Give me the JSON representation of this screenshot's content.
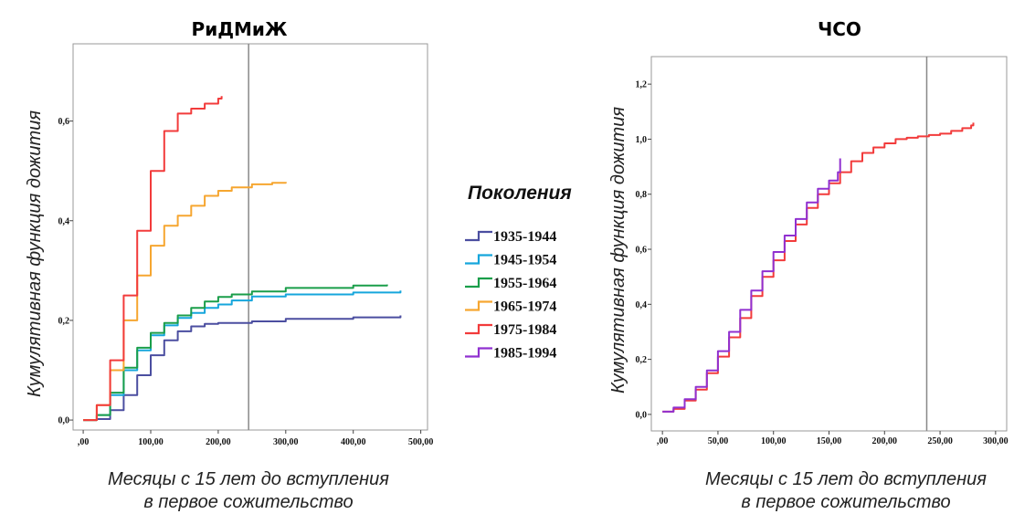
{
  "legend": {
    "title": "Поколения",
    "entries": [
      {
        "label": "1935-1944",
        "color": "#4b4ea0"
      },
      {
        "label": "1945-1954",
        "color": "#16a6dc"
      },
      {
        "label": "1955-1964",
        "color": "#1a9e4a"
      },
      {
        "label": "1965-1974",
        "color": "#f6a630"
      },
      {
        "label": "1975-1984",
        "color": "#f23b3b"
      },
      {
        "label": "1985-1994",
        "color": "#9030d0"
      }
    ]
  },
  "chart_data": [
    {
      "type": "line",
      "title": "РиДМиЖ",
      "xlabel": [
        "Месяцы с 15 лет до вступления",
        "в первое сожительство"
      ],
      "ylabel": "Кумулятивная функция дожития",
      "xlim": [
        -15,
        510
      ],
      "ylim": [
        -0.02,
        0.755
      ],
      "xticks": [
        0,
        100,
        200,
        300,
        400,
        500
      ],
      "xtick_labels": [
        ",00",
        "100,00",
        "200,00",
        "300,00",
        "400,00",
        "500,00"
      ],
      "yticks": [
        0,
        0.2,
        0.4,
        0.6
      ],
      "ytick_labels": [
        "0,0",
        "0,2",
        "0,4",
        "0,6"
      ],
      "reference_line_x": 245,
      "grid": false,
      "legend_position": "right",
      "series": [
        {
          "name": "1935-1944",
          "color": "#4b4ea0",
          "x": [
            0,
            20,
            40,
            60,
            80,
            100,
            120,
            140,
            160,
            180,
            200,
            250,
            300,
            400,
            470
          ],
          "y": [
            0,
            0.002,
            0.02,
            0.05,
            0.09,
            0.13,
            0.16,
            0.178,
            0.188,
            0.193,
            0.195,
            0.198,
            0.203,
            0.206,
            0.21
          ]
        },
        {
          "name": "1945-1954",
          "color": "#16a6dc",
          "x": [
            0,
            20,
            40,
            60,
            80,
            100,
            120,
            140,
            160,
            180,
            200,
            220,
            250,
            300,
            400,
            470
          ],
          "y": [
            0,
            0.01,
            0.05,
            0.1,
            0.14,
            0.17,
            0.19,
            0.205,
            0.215,
            0.225,
            0.232,
            0.24,
            0.248,
            0.252,
            0.256,
            0.26
          ]
        },
        {
          "name": "1955-1964",
          "color": "#1a9e4a",
          "x": [
            0,
            20,
            40,
            60,
            80,
            100,
            120,
            140,
            160,
            180,
            200,
            220,
            250,
            300,
            400,
            450
          ],
          "y": [
            0,
            0.01,
            0.055,
            0.105,
            0.145,
            0.175,
            0.195,
            0.21,
            0.225,
            0.238,
            0.247,
            0.252,
            0.258,
            0.265,
            0.27,
            0.272
          ]
        },
        {
          "name": "1965-1974",
          "color": "#f6a630",
          "x": [
            0,
            20,
            40,
            60,
            80,
            100,
            120,
            140,
            160,
            180,
            200,
            220,
            250,
            280,
            300
          ],
          "y": [
            0,
            0.03,
            0.1,
            0.2,
            0.29,
            0.35,
            0.39,
            0.41,
            0.43,
            0.45,
            0.46,
            0.467,
            0.473,
            0.476,
            0.478
          ]
        },
        {
          "name": "1975-1984",
          "color": "#f23b3b",
          "x": [
            0,
            20,
            40,
            60,
            80,
            100,
            120,
            140,
            160,
            180,
            200,
            205
          ],
          "y": [
            0,
            0.03,
            0.12,
            0.25,
            0.38,
            0.5,
            0.58,
            0.615,
            0.625,
            0.635,
            0.645,
            0.65
          ]
        }
      ]
    },
    {
      "type": "line",
      "title": "ЧСО",
      "xlabel": [
        "Месяцы с 15 лет до вступления",
        "в первое сожительство"
      ],
      "ylabel": "Кумулятивная функция дожития",
      "xlim": [
        -10,
        310
      ],
      "ylim": [
        -0.06,
        1.3
      ],
      "xticks": [
        0,
        50,
        100,
        150,
        200,
        250,
        300
      ],
      "xtick_labels": [
        ",00",
        "50,00",
        "100,00",
        "150,00",
        "200,00",
        "250,00",
        "300,00"
      ],
      "yticks": [
        0,
        0.2,
        0.4,
        0.6,
        0.8,
        1.0,
        1.2
      ],
      "ytick_labels": [
        "0,0",
        "0,2",
        "0,4",
        "0,6",
        "0,8",
        "1,0",
        "1,2"
      ],
      "reference_line_x": 238,
      "grid": false,
      "series": [
        {
          "name": "1975-1984",
          "color": "#f23b3b",
          "x": [
            0,
            10,
            20,
            30,
            40,
            50,
            60,
            70,
            80,
            90,
            100,
            110,
            120,
            130,
            140,
            150,
            160,
            170,
            180,
            190,
            200,
            210,
            220,
            230,
            240,
            250,
            260,
            270,
            278,
            280
          ],
          "y": [
            0.01,
            0.02,
            0.05,
            0.09,
            0.15,
            0.21,
            0.28,
            0.35,
            0.43,
            0.5,
            0.56,
            0.63,
            0.69,
            0.75,
            0.8,
            0.84,
            0.88,
            0.92,
            0.95,
            0.97,
            0.985,
            1.0,
            1.005,
            1.01,
            1.015,
            1.02,
            1.03,
            1.04,
            1.05,
            1.06
          ]
        },
        {
          "name": "1985-1994",
          "color": "#9030d0",
          "x": [
            0,
            10,
            20,
            30,
            40,
            50,
            60,
            70,
            80,
            90,
            100,
            110,
            120,
            130,
            140,
            150,
            158,
            160
          ],
          "y": [
            0.01,
            0.025,
            0.055,
            0.1,
            0.16,
            0.23,
            0.3,
            0.38,
            0.45,
            0.52,
            0.59,
            0.65,
            0.71,
            0.77,
            0.82,
            0.85,
            0.88,
            0.93
          ]
        }
      ]
    }
  ]
}
